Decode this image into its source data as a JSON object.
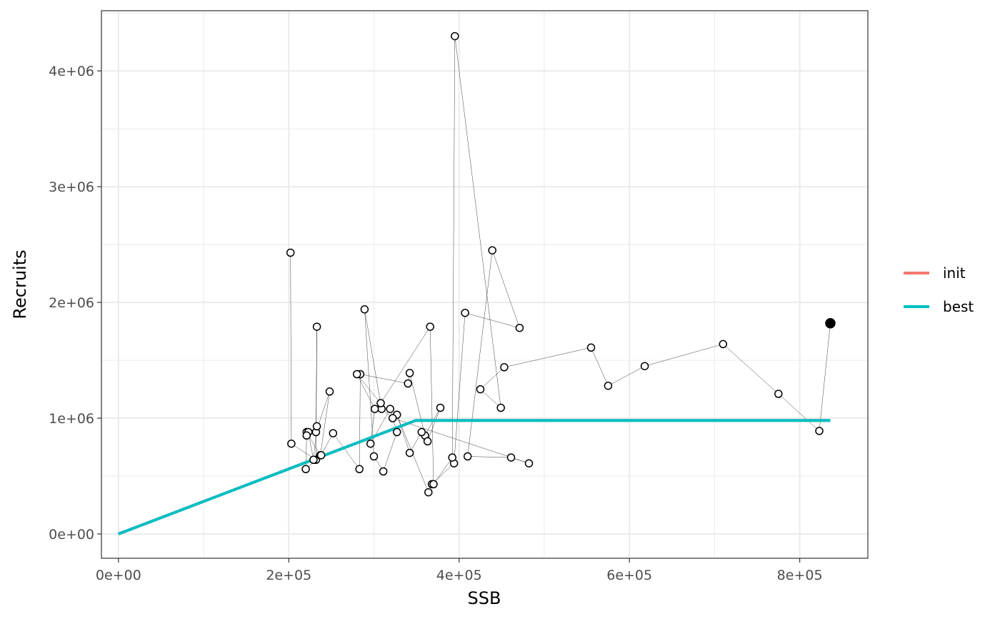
{
  "chart_data": {
    "type": "scatter",
    "xlabel": "SSB",
    "ylabel": "Recruits",
    "xlim": [
      -20000,
      880000
    ],
    "ylim": [
      -210000,
      4520000
    ],
    "x_ticks": [
      0,
      200000,
      400000,
      600000,
      800000
    ],
    "x_tick_labels": [
      "0e+00",
      "2e+05",
      "4e+05",
      "6e+05",
      "8e+05"
    ],
    "y_ticks": [
      0,
      1000000,
      2000000,
      3000000,
      4000000
    ],
    "y_tick_labels": [
      "0e+00",
      "1e+06",
      "2e+06",
      "3e+06",
      "4e+06"
    ],
    "grid": true,
    "legend": {
      "placement": "right",
      "entries": [
        {
          "label": "init",
          "color": "#F8766D"
        },
        {
          "label": "best",
          "color": "#00BFC4"
        }
      ]
    },
    "series": [
      {
        "name": "init",
        "color": "#F8766D",
        "type": "line",
        "x": [
          0,
          349000,
          836000
        ],
        "y": [
          0,
          980000,
          980000
        ]
      },
      {
        "name": "best",
        "color": "#00BFC4",
        "type": "line",
        "x": [
          0,
          349000,
          836000
        ],
        "y": [
          0,
          980000,
          980000
        ]
      }
    ],
    "observations": {
      "x": [
        202000,
        203000,
        232000,
        233000,
        232000,
        248000,
        237000,
        221000,
        223000,
        229000,
        233000,
        221000,
        220000,
        238000,
        252000,
        283000,
        284000,
        340000,
        342000,
        360000,
        378000,
        363000,
        356000,
        342000,
        327000,
        364000,
        368000,
        394000,
        407000,
        471000,
        439000,
        410000,
        461000,
        482000,
        322000,
        309000,
        289000,
        300000,
        311000,
        327000,
        319000,
        296000,
        301000,
        280000,
        308000,
        366000,
        370000,
        392000,
        395000,
        449000,
        425000,
        453000,
        555000,
        575000,
        618000,
        710000,
        775000,
        823000,
        836000
      ],
      "y": [
        2430000,
        780000,
        640000,
        1790000,
        880000,
        1230000,
        680000,
        880000,
        880000,
        640000,
        930000,
        850000,
        560000,
        680000,
        870000,
        560000,
        1380000,
        1300000,
        1390000,
        850000,
        1090000,
        800000,
        880000,
        700000,
        1030000,
        360000,
        430000,
        610000,
        1910000,
        1780000,
        2450000,
        670000,
        660000,
        610000,
        1000000,
        1080000,
        1940000,
        670000,
        540000,
        880000,
        1080000,
        780000,
        1080000,
        1380000,
        1130000,
        1790000,
        430000,
        660000,
        4300000,
        1090000,
        1250000,
        1440000,
        1610000,
        1280000,
        1450000,
        1640000,
        1210000,
        890000,
        1820000
      ],
      "last_highlighted": true
    }
  }
}
